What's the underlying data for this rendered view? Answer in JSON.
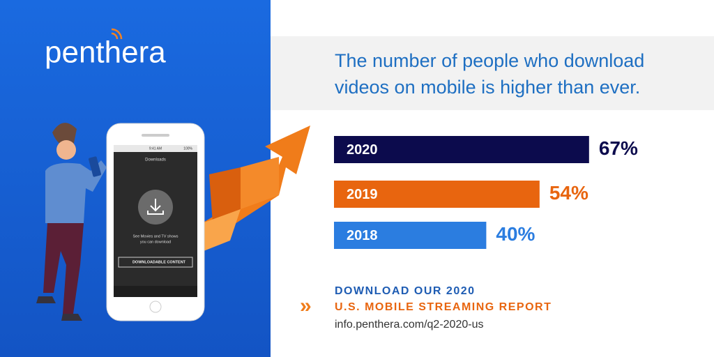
{
  "brand": "penthera",
  "phone": {
    "time": "9:41 AM",
    "battery": "100%",
    "screen_title": "Downloads",
    "message": [
      "See Movies and TV shows",
      "you can download"
    ],
    "button": "DOWNLOADABLE CONTENT"
  },
  "chart_data": {
    "type": "bar",
    "orientation": "horizontal",
    "title": [
      "The number of people who download",
      "videos on mobile is higher than ever."
    ],
    "categories": [
      "2020",
      "2019",
      "2018"
    ],
    "values": [
      67,
      54,
      40
    ],
    "value_labels": [
      "67%",
      "54%",
      "40%"
    ],
    "colors": [
      "#0c0b4d",
      "#e8650f",
      "#2b7de0"
    ]
  },
  "cta": {
    "lines": [
      "DOWNLOAD OUR 2020",
      "U.S. MOBILE STREAMING REPORT"
    ],
    "url": "info.penthera.com/q2-2020-us"
  }
}
